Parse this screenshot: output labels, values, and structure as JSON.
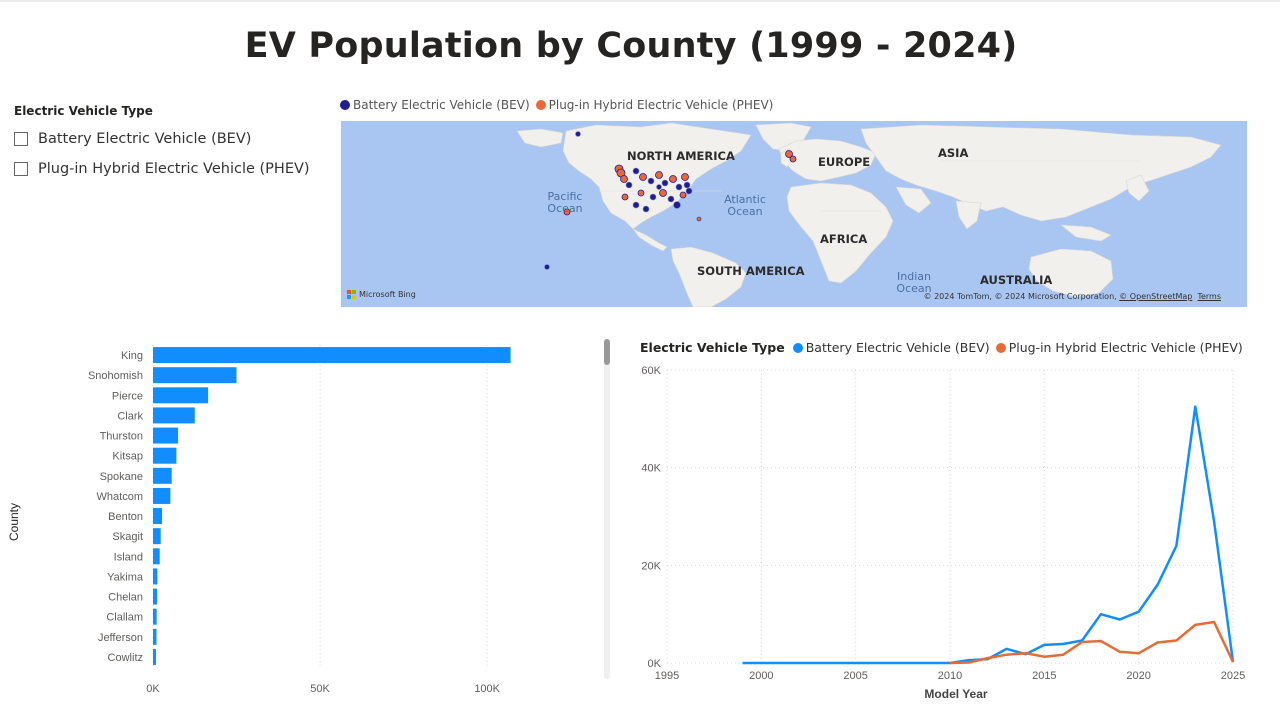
{
  "title": "EV Population by County (1999 - 2024)",
  "slicer": {
    "title": "Electric Vehicle Type",
    "options": [
      "Battery Electric Vehicle (BEV)",
      "Plug-in Hybrid Electric Vehicle (PHEV)"
    ]
  },
  "colors": {
    "bev_map": "#1f1f8c",
    "phev_map": "#e8683a",
    "bar": "#118dff",
    "bev_line": "#118dff",
    "phev_line": "#e66c37",
    "ocean": "#a9c6f2",
    "land": "#f2f0ec"
  },
  "map": {
    "legend": [
      "Battery Electric Vehicle (BEV)",
      "Plug-in Hybrid Electric Vehicle (PHEV)"
    ],
    "labels": {
      "north_america": "NORTH AMERICA",
      "europe": "EUROPE",
      "asia": "ASIA",
      "africa": "AFRICA",
      "south_america": "SOUTH AMERICA",
      "australia": "AUSTRALIA"
    },
    "oceans": {
      "pacific": "Pacific Ocean",
      "atlantic": "Atlantic Ocean",
      "indian": "Indian Ocean"
    },
    "attribution_prefix": "© 2024 TomTom, © 2024 Microsoft Corporation, ",
    "attribution_osm": "© OpenStreetMap",
    "attribution_terms": "Terms",
    "bing_logo": "Microsoft Bing"
  },
  "chart_data": [
    {
      "type": "bar",
      "orientation": "horizontal",
      "categories": [
        "King",
        "Snohomish",
        "Pierce",
        "Clark",
        "Thurston",
        "Kitsap",
        "Spokane",
        "Whatcom",
        "Benton",
        "Skagit",
        "Island",
        "Yakima",
        "Chelan",
        "Clallam",
        "Jefferson",
        "Cowlitz"
      ],
      "values": [
        107000,
        25000,
        16500,
        12500,
        7500,
        7000,
        5600,
        5200,
        2700,
        2300,
        2000,
        1300,
        1200,
        1100,
        1050,
        900
      ],
      "ylabel": "County",
      "xticks": [
        "0K",
        "50K",
        "100K"
      ],
      "xlim": [
        0,
        120000
      ],
      "grid": true
    },
    {
      "type": "line",
      "legend_title": "Electric Vehicle Type",
      "xlabel": "Model Year",
      "xticks": [
        "1995",
        "2000",
        "2005",
        "2010",
        "2015",
        "2020",
        "2025"
      ],
      "yticks": [
        "0K",
        "20K",
        "40K",
        "60K"
      ],
      "xlim": [
        1995,
        2025
      ],
      "ylim": [
        0,
        60000
      ],
      "grid": true,
      "series": [
        {
          "name": "Battery Electric Vehicle (BEV)",
          "x": [
            1999,
            2000,
            2002,
            2003,
            2008,
            2010,
            2011,
            2012,
            2013,
            2014,
            2015,
            2016,
            2017,
            2018,
            2019,
            2020,
            2021,
            2022,
            2023,
            2024,
            2025
          ],
          "values": [
            0,
            0,
            0,
            0,
            0,
            0,
            600,
            800,
            2900,
            1800,
            3700,
            3900,
            4600,
            10000,
            8900,
            10500,
            16000,
            24000,
            52500,
            29000,
            200
          ]
        },
        {
          "name": "Plug-in Hybrid Electric Vehicle (PHEV)",
          "x": [
            2010,
            2011,
            2012,
            2013,
            2014,
            2015,
            2016,
            2017,
            2018,
            2019,
            2020,
            2021,
            2022,
            2023,
            2024,
            2025
          ],
          "values": [
            0,
            100,
            1000,
            1700,
            2000,
            1300,
            1700,
            4300,
            4500,
            2300,
            2000,
            4200,
            4600,
            7800,
            8400,
            200
          ]
        }
      ]
    }
  ]
}
